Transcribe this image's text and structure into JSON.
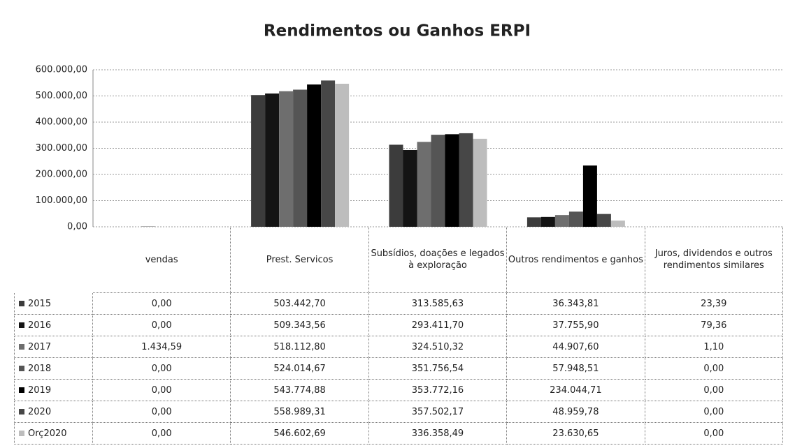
{
  "chart_data": {
    "type": "bar",
    "title": "Rendimentos ou Ganhos ERPI",
    "categories": [
      "vendas",
      "Prest. Servicos",
      "Subsídios, doações e legados à exploração",
      "Outros rendimentos e ganhos",
      "Juros, dividendos e outros rendimentos similares"
    ],
    "series": [
      {
        "name": "2015",
        "color": "#3c3c3c",
        "values": [
          0,
          503442.7,
          313585.63,
          36343.81,
          23.39
        ],
        "value_labels": [
          "0,00",
          "503.442,70",
          "313.585,63",
          "36.343,81",
          "23,39"
        ]
      },
      {
        "name": "2016",
        "color": "#141414",
        "values": [
          0,
          509343.56,
          293411.7,
          37755.9,
          79.36
        ],
        "value_labels": [
          "0,00",
          "509.343,56",
          "293.411,70",
          "37.755,90",
          "79,36"
        ]
      },
      {
        "name": "2017",
        "color": "#6e6e6e",
        "values": [
          1434.59,
          518112.8,
          324510.32,
          44907.6,
          1.1
        ],
        "value_labels": [
          "1.434,59",
          "518.112,80",
          "324.510,32",
          "44.907,60",
          "1,10"
        ]
      },
      {
        "name": "2018",
        "color": "#555555",
        "values": [
          0,
          524014.67,
          351756.54,
          57948.51,
          0
        ],
        "value_labels": [
          "0,00",
          "524.014,67",
          "351.756,54",
          "57.948,51",
          "0,00"
        ]
      },
      {
        "name": "2019",
        "color": "#000000",
        "values": [
          0,
          543774.88,
          353772.16,
          234044.71,
          0
        ],
        "value_labels": [
          "0,00",
          "543.774,88",
          "353.772,16",
          "234.044,71",
          "0,00"
        ]
      },
      {
        "name": "2020",
        "color": "#474747",
        "values": [
          0,
          558989.31,
          357502.17,
          48959.78,
          0
        ],
        "value_labels": [
          "0,00",
          "558.989,31",
          "357.502,17",
          "48.959,78",
          "0,00"
        ]
      },
      {
        "name": "Orç2020",
        "color": "#bdbdbd",
        "values": [
          0,
          546602.69,
          336358.49,
          23630.65,
          0
        ],
        "value_labels": [
          "0,00",
          "546.602,69",
          "336.358,49",
          "23.630,65",
          "0,00"
        ]
      }
    ],
    "ylim": [
      0,
      600000
    ],
    "yticks": [
      {
        "value": 0,
        "label": "0,00"
      },
      {
        "value": 100000,
        "label": "100.000,00"
      },
      {
        "value": 200000,
        "label": "200.000,00"
      },
      {
        "value": 300000,
        "label": "300.000,00"
      },
      {
        "value": 400000,
        "label": "400.000,00"
      },
      {
        "value": 500000,
        "label": "500.000,00"
      },
      {
        "value": 600000,
        "label": "600.000,00"
      }
    ],
    "grid": true
  }
}
